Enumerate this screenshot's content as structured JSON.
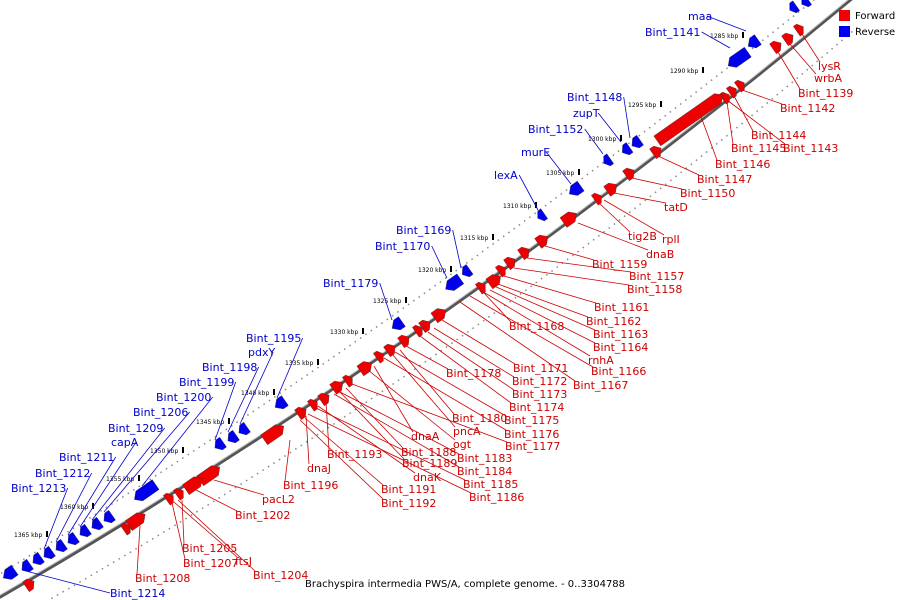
{
  "caption": "Brachyspira intermedia PWS/A, complete genome. - 0..3304788",
  "legend": [
    {
      "label": "Forward",
      "color": "#ee0000"
    },
    {
      "label": "Reverse",
      "color": "#0000ee"
    }
  ],
  "kbp_ticks": [
    "1285 kbp",
    "1290 kbp",
    "1295 kbp",
    "1300 kbp",
    "1305 kbp",
    "1310 kbp",
    "1315 kbp",
    "1320 kbp",
    "1325 kbp",
    "1330 kbp",
    "1335 kbp",
    "1340 kbp",
    "1345 kbp",
    "1350 kbp",
    "1355 kbp",
    "1360 kbp",
    "1365 kbp"
  ],
  "reverse_labels": [
    "maa",
    "Bint_1141",
    "Bint_1148",
    "zupT",
    "Bint_1152",
    "murE",
    "lexA",
    "Bint_1169",
    "Bint_1170",
    "Bint_1179",
    "Bint_1195",
    "pdxY",
    "Bint_1198",
    "Bint_1199",
    "Bint_1200",
    "Bint_1206",
    "Bint_1209",
    "capA",
    "Bint_1211",
    "Bint_1212",
    "Bint_1213",
    "Bint_1214"
  ],
  "forward_labels": [
    "lysR",
    "wrbA",
    "Bint_1139",
    "Bint_1142",
    "Bint_1144",
    "Bint_1145",
    "Bint_1143",
    "Bint_1146",
    "Bint_1147",
    "Bint_1150",
    "tatD",
    "tig2B",
    "rplI",
    "dnaB",
    "Bint_1159",
    "Bint_1157",
    "Bint_1158",
    "Bint_1161",
    "Bint_1162",
    "Bint_1163",
    "Bint_1164",
    "Bint_1168",
    "rnhA",
    "Bint_1166",
    "Bint_1167",
    "Bint_1171",
    "Bint_1172",
    "Bint_1173",
    "Bint_1174",
    "Bint_1178",
    "Bint_1180",
    "Bint_1175",
    "pncA",
    "Bint_1176",
    "dnaA",
    "ogt",
    "Bint_1177",
    "Bint_1188",
    "Bint_1183",
    "Bint_1189",
    "Bint_1184",
    "Bint_1193",
    "dnaK",
    "Bint_1185",
    "dnaJ",
    "Bint_1186",
    "Bint_1191",
    "Bint_1196",
    "Bint_1192",
    "pacL2",
    "Bint_1202",
    "Bint_1205",
    "Bint_1207",
    "ftsJ",
    "Bint_1208",
    "Bint_1204"
  ]
}
